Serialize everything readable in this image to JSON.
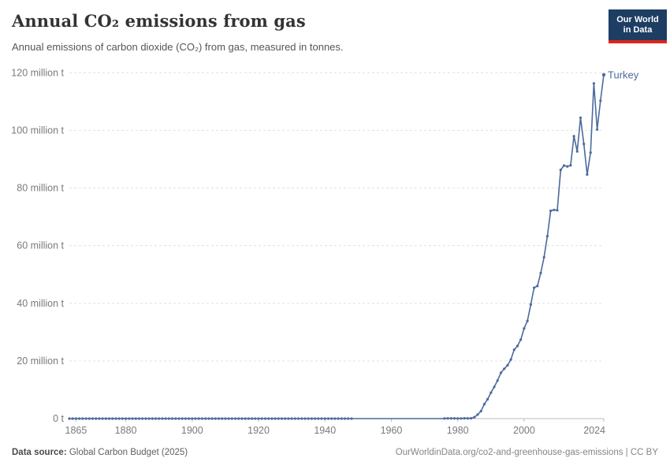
{
  "header": {
    "title": "Annual CO₂ emissions from gas",
    "subtitle": "Annual emissions of carbon dioxide (CO₂) from gas, measured in tonnes.",
    "logo": {
      "line1": "Our World",
      "line2": "in Data"
    }
  },
  "footer": {
    "source_label": "Data source:",
    "source_value": " Global Carbon Budget (2025)",
    "link": "OurWorldinData.org/co2-and-greenhouse-gas-emissions | CC BY"
  },
  "colors": {
    "series": "#4C6A9C",
    "gridline": "#e0e0e0",
    "axis_line": "#bdbdbd",
    "axis_label": "#7a7a7a",
    "logo_bg": "#1d3d63",
    "logo_red": "#e0261c"
  },
  "chart_data": {
    "type": "line",
    "title": "Annual CO₂ emissions from gas",
    "subtitle": "Annual emissions of carbon dioxide (CO₂) from gas, measured in tonnes.",
    "unit_scale": "million tonnes",
    "grid": "horizontal dashed",
    "legend_position": "end-of-line label",
    "xlim": [
      1863,
      2024
    ],
    "ylim": [
      0,
      120
    ],
    "x_ticks": [
      1865,
      1880,
      1900,
      1920,
      1940,
      1960,
      1980,
      2000,
      2024
    ],
    "y_ticks": [
      {
        "value": 0,
        "label": "0 t"
      },
      {
        "value": 20,
        "label": "20 million t"
      },
      {
        "value": 40,
        "label": "40 million t"
      },
      {
        "value": 60,
        "label": "60 million t"
      },
      {
        "value": 80,
        "label": "80 million t"
      },
      {
        "value": 100,
        "label": "100 million t"
      },
      {
        "value": 120,
        "label": "120 million t"
      }
    ],
    "series": [
      {
        "name": "Turkey",
        "color": "#4C6A9C",
        "zero_span": {
          "start_year": 1863,
          "end_year": 1975,
          "value": 0
        },
        "marker_hidden_years": [
          1949,
          1975
        ],
        "points_million_t": [
          [
            1976,
            0.06
          ],
          [
            1977,
            0.07
          ],
          [
            1978,
            0.08
          ],
          [
            1979,
            0.09
          ],
          [
            1980,
            0.06
          ],
          [
            1981,
            0.06
          ],
          [
            1982,
            0.1
          ],
          [
            1983,
            0.08
          ],
          [
            1984,
            0.12
          ],
          [
            1985,
            0.5
          ],
          [
            1986,
            1.4
          ],
          [
            1987,
            2.6
          ],
          [
            1988,
            5.0
          ],
          [
            1989,
            6.7
          ],
          [
            1990,
            9.0
          ],
          [
            1991,
            11.0
          ],
          [
            1992,
            13.2
          ],
          [
            1993,
            15.9
          ],
          [
            1994,
            17.3
          ],
          [
            1995,
            18.5
          ],
          [
            1996,
            20.5
          ],
          [
            1997,
            23.9
          ],
          [
            1998,
            25.2
          ],
          [
            1999,
            27.4
          ],
          [
            2000,
            31.3
          ],
          [
            2001,
            33.9
          ],
          [
            2002,
            39.6
          ],
          [
            2003,
            45.4
          ],
          [
            2004,
            46.0
          ],
          [
            2005,
            50.5
          ],
          [
            2006,
            56.0
          ],
          [
            2007,
            63.3
          ],
          [
            2008,
            72.1
          ],
          [
            2009,
            72.4
          ],
          [
            2010,
            72.3
          ],
          [
            2011,
            86.3
          ],
          [
            2012,
            87.8
          ],
          [
            2013,
            87.5
          ],
          [
            2014,
            87.9
          ],
          [
            2015,
            98.0
          ],
          [
            2016,
            92.7
          ],
          [
            2017,
            104.4
          ],
          [
            2018,
            95.3
          ],
          [
            2019,
            84.7
          ],
          [
            2020,
            92.3
          ],
          [
            2021,
            116.3
          ],
          [
            2022,
            100.3
          ],
          [
            2023,
            110.3
          ],
          [
            2024,
            119.3
          ]
        ]
      }
    ]
  }
}
